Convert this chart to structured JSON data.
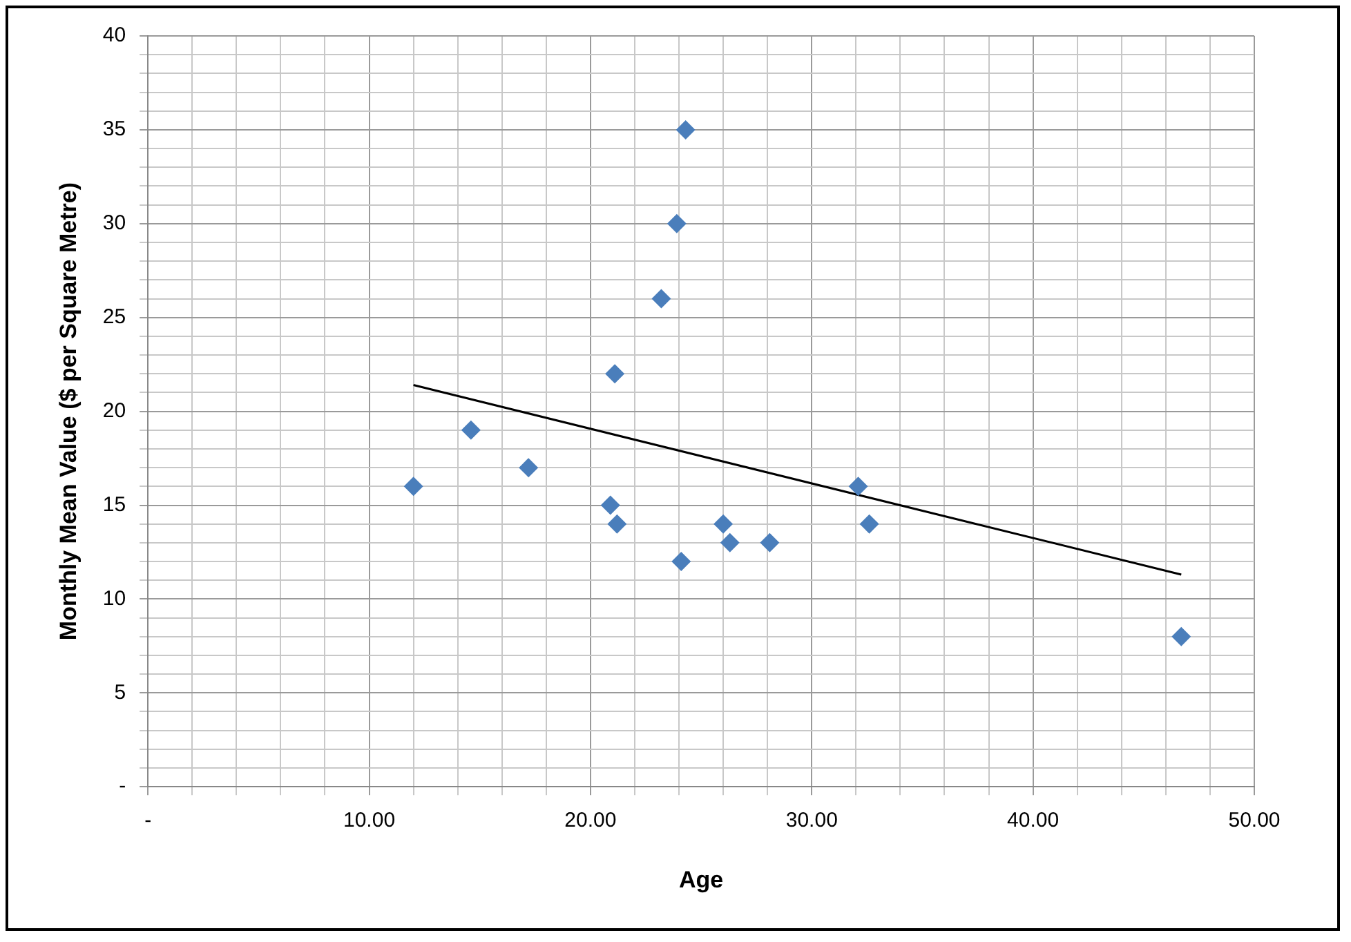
{
  "chart_data": {
    "type": "scatter",
    "xlabel": "Age",
    "ylabel": "Monthly Mean Value ($ per Square Metre)",
    "xlim": [
      0,
      50
    ],
    "ylim": [
      0,
      40
    ],
    "xticks": [
      {
        "value": 0,
        "label": "-"
      },
      {
        "value": 2,
        "label": null
      },
      {
        "value": 4,
        "label": null
      },
      {
        "value": 6,
        "label": null
      },
      {
        "value": 8,
        "label": null
      },
      {
        "value": 10,
        "label": "10.00"
      },
      {
        "value": 12,
        "label": null
      },
      {
        "value": 14,
        "label": null
      },
      {
        "value": 16,
        "label": null
      },
      {
        "value": 18,
        "label": null
      },
      {
        "value": 20,
        "label": "20.00"
      },
      {
        "value": 22,
        "label": null
      },
      {
        "value": 24,
        "label": null
      },
      {
        "value": 26,
        "label": null
      },
      {
        "value": 28,
        "label": null
      },
      {
        "value": 30,
        "label": "30.00"
      },
      {
        "value": 32,
        "label": null
      },
      {
        "value": 34,
        "label": null
      },
      {
        "value": 36,
        "label": null
      },
      {
        "value": 38,
        "label": null
      },
      {
        "value": 40,
        "label": "40.00"
      },
      {
        "value": 42,
        "label": null
      },
      {
        "value": 44,
        "label": null
      },
      {
        "value": 46,
        "label": null
      },
      {
        "value": 48,
        "label": null
      },
      {
        "value": 50,
        "label": "50.00"
      }
    ],
    "yticks": [
      {
        "value": 0,
        "label": "-"
      },
      {
        "value": 1,
        "label": null
      },
      {
        "value": 2,
        "label": null
      },
      {
        "value": 3,
        "label": null
      },
      {
        "value": 4,
        "label": null
      },
      5,
      {
        "value": 6,
        "label": null
      },
      {
        "value": 7,
        "label": null
      },
      {
        "value": 8,
        "label": null
      },
      {
        "value": 9,
        "label": null
      },
      10,
      {
        "value": 11,
        "label": null
      },
      {
        "value": 12,
        "label": null
      },
      {
        "value": 13,
        "label": null
      },
      {
        "value": 14,
        "label": null
      },
      15,
      {
        "value": 16,
        "label": null
      },
      {
        "value": 17,
        "label": null
      },
      {
        "value": 18,
        "label": null
      },
      {
        "value": 19,
        "label": null
      },
      20,
      {
        "value": 21,
        "label": null
      },
      {
        "value": 22,
        "label": null
      },
      {
        "value": 23,
        "label": null
      },
      {
        "value": 24,
        "label": null
      },
      25,
      {
        "value": 26,
        "label": null
      },
      {
        "value": 27,
        "label": null
      },
      {
        "value": 28,
        "label": null
      },
      {
        "value": 29,
        "label": null
      },
      30,
      {
        "value": 31,
        "label": null
      },
      {
        "value": 32,
        "label": null
      },
      {
        "value": 33,
        "label": null
      },
      {
        "value": 34,
        "label": null
      },
      35,
      {
        "value": 36,
        "label": null
      },
      {
        "value": 37,
        "label": null
      },
      {
        "value": 38,
        "label": null
      },
      {
        "value": 39,
        "label": null
      },
      40
    ],
    "grid": true,
    "marker": "diamond",
    "legend": false,
    "series": [
      {
        "type": "scatter",
        "color": "#4a7ebb",
        "x": [
          12.0,
          14.6,
          17.2,
          21.1,
          20.9,
          21.2,
          23.2,
          23.9,
          24.3,
          24.1,
          26.0,
          26.3,
          28.1,
          32.1,
          32.6,
          46.7
        ],
        "values": [
          16,
          19,
          17,
          22,
          15,
          14,
          26,
          30,
          35,
          12,
          14,
          13,
          13,
          16,
          14,
          8
        ]
      },
      {
        "type": "line",
        "color": "#000000",
        "marker": "none",
        "line_style": "solid",
        "x": [
          12.0,
          46.7
        ],
        "values": [
          21.4,
          11.3
        ]
      }
    ]
  }
}
